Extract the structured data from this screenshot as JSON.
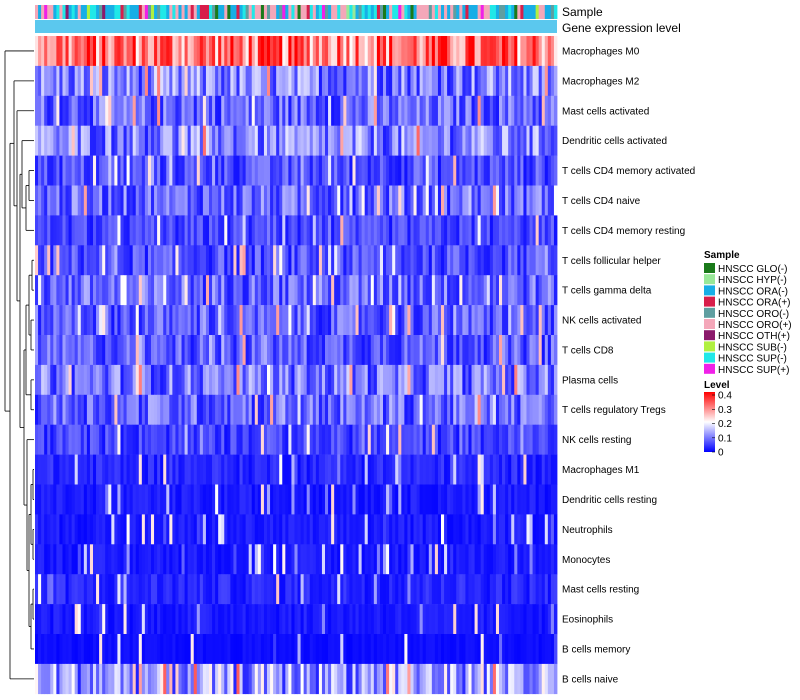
{
  "chart_data": {
    "type": "heatmap",
    "title": "",
    "annotation_labels": [
      "Sample",
      "Gene expression level"
    ],
    "rows": [
      "Macrophages M0",
      "Macrophages M2",
      "Mast cells activated",
      "Dendritic cells activated",
      "T cells CD4 memory activated",
      "T cells CD4 naive",
      "T cells CD4 memory resting",
      "T cells follicular helper",
      "T cells gamma delta",
      "NK cells activated",
      "T cells CD8",
      "Plasma cells",
      "T cells regulatory  Tregs",
      "NK cells resting",
      "Macrophages M1",
      "Dendritic cells resting",
      "Neutrophils",
      "Monocytes",
      "Mast cells resting",
      "Eosinophils",
      "B cells memory",
      "B cells naive"
    ],
    "row_mean_levels": [
      0.3,
      0.1,
      0.08,
      0.1,
      0.06,
      0.08,
      0.05,
      0.06,
      0.08,
      0.07,
      0.07,
      0.09,
      0.08,
      0.05,
      0.03,
      0.02,
      0.02,
      0.02,
      0.03,
      0.02,
      0.01,
      0.12
    ],
    "n_samples": 171,
    "sample_legend": {
      "title": "Sample",
      "entries": [
        {
          "label": "HNSCC GLO(-)",
          "color": "#1a7a1a"
        },
        {
          "label": "HNSCC HYP(-)",
          "color": "#98e898"
        },
        {
          "label": "HNSCC ORA(-)",
          "color": "#18aee6"
        },
        {
          "label": "HNSCC ORA(+)",
          "color": "#d81e4a"
        },
        {
          "label": "HNSCC ORO(-)",
          "color": "#5f9ea0"
        },
        {
          "label": "HNSCC ORO(+)",
          "color": "#f4a7b9"
        },
        {
          "label": "HNSCC OTH(+)",
          "color": "#8b1a6b"
        },
        {
          "label": "HNSCC SUB(-)",
          "color": "#b0f040"
        },
        {
          "label": "HNSCC SUP(-)",
          "color": "#20e8e8"
        },
        {
          "label": "HNSCC SUP(+)",
          "color": "#f020e8"
        }
      ]
    },
    "level_legend": {
      "title": "Level",
      "ticks": [
        "0.4",
        "0.3",
        "0.2",
        "0.1",
        "0"
      ],
      "range": [
        0,
        0.4
      ],
      "colors": [
        "#0000ff",
        "#ffffff",
        "#ff0000"
      ]
    },
    "expression_bar_color": "#5bc8ee",
    "dendrogram": "hierarchical clustering of rows (left)"
  }
}
